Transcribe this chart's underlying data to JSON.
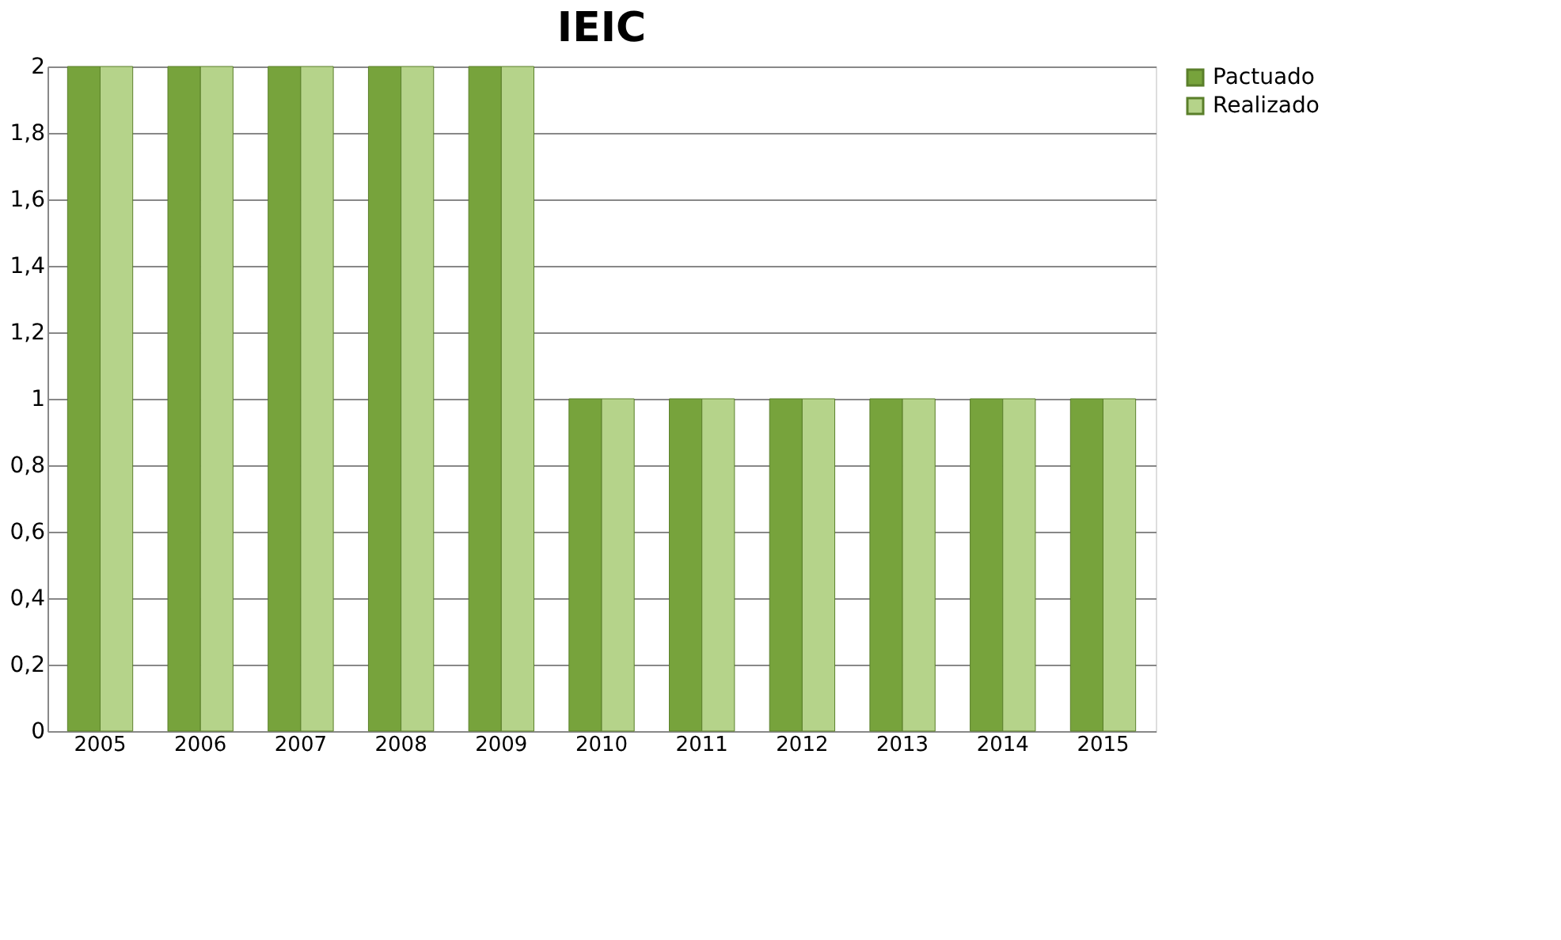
{
  "chart_data": {
    "type": "bar",
    "title": "IEIC",
    "categories": [
      "2005",
      "2006",
      "2007",
      "2008",
      "2009",
      "2010",
      "2011",
      "2012",
      "2013",
      "2014",
      "2015"
    ],
    "series": [
      {
        "name": "Pactuado",
        "color": "#77a33c",
        "values": [
          2,
          2,
          2,
          2,
          2,
          1,
          1,
          1,
          1,
          1,
          1
        ]
      },
      {
        "name": "Realizado",
        "color": "#b5d38a",
        "values": [
          2,
          2,
          2,
          2,
          2,
          1,
          1,
          1,
          1,
          1,
          1
        ]
      }
    ],
    "ylim": [
      0,
      2
    ],
    "yticks": [
      0,
      {
        "value": 0.2,
        "label": "0,2"
      },
      {
        "value": 0.4,
        "label": "0,4"
      },
      {
        "value": 0.6,
        "label": "0,6"
      },
      {
        "value": 0.8,
        "label": "0,8"
      },
      1,
      {
        "value": 1.2,
        "label": "1,2"
      },
      {
        "value": 1.4,
        "label": "1,4"
      },
      {
        "value": 1.6,
        "label": "1,6"
      },
      {
        "value": 1.8,
        "label": "1,8"
      },
      2
    ],
    "grid": "y",
    "legend": "right"
  }
}
